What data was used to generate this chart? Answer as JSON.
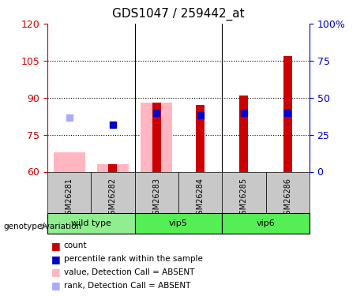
{
  "title": "GDS1047 / 259442_at",
  "samples": [
    "GSM26281",
    "GSM26282",
    "GSM26283",
    "GSM26284",
    "GSM26285",
    "GSM26286"
  ],
  "groups": [
    {
      "label": "wild type",
      "samples": [
        0,
        1
      ],
      "color": "#90EE90"
    },
    {
      "label": "vip5",
      "samples": [
        2,
        3
      ],
      "color": "#00DD00"
    },
    {
      "label": "vip6",
      "samples": [
        4,
        5
      ],
      "color": "#00DD00"
    }
  ],
  "ylim_left": [
    60,
    120
  ],
  "ylim_right": [
    0,
    100
  ],
  "yticks_left": [
    60,
    75,
    90,
    105,
    120
  ],
  "yticks_right": [
    0,
    25,
    50,
    75,
    100
  ],
  "bar_bottom": 60,
  "absent_value_bars": {
    "heights": [
      68,
      63,
      88,
      null,
      null,
      null
    ],
    "color": "#FFB6C1"
  },
  "absent_rank_markers": {
    "values": [
      82,
      null,
      null,
      null,
      null,
      null
    ],
    "color": "#AAAAFF"
  },
  "count_bars": {
    "heights": [
      null,
      63,
      88,
      87,
      91,
      107
    ],
    "color": "#CC0000"
  },
  "rank_markers": {
    "values": [
      null,
      79,
      84,
      83,
      84,
      84
    ],
    "color": "#0000CC"
  },
  "bar_width": 0.4,
  "marker_size": 6,
  "grid_color": "#000000",
  "left_axis_color": "#CC0000",
  "right_axis_color": "#0000CC",
  "background_plot": "#FFFFFF",
  "background_sample": "#C8C8C8",
  "background_group_wild": "#90EE90",
  "background_group_vip": "#55EE55",
  "genotype_label": "genotype/variation",
  "legend_items": [
    {
      "label": "count",
      "color": "#CC0000"
    },
    {
      "label": "percentile rank within the sample",
      "color": "#0000CC"
    },
    {
      "label": "value, Detection Call = ABSENT",
      "color": "#FFB6C1"
    },
    {
      "label": "rank, Detection Call = ABSENT",
      "color": "#AAAAFF"
    }
  ]
}
